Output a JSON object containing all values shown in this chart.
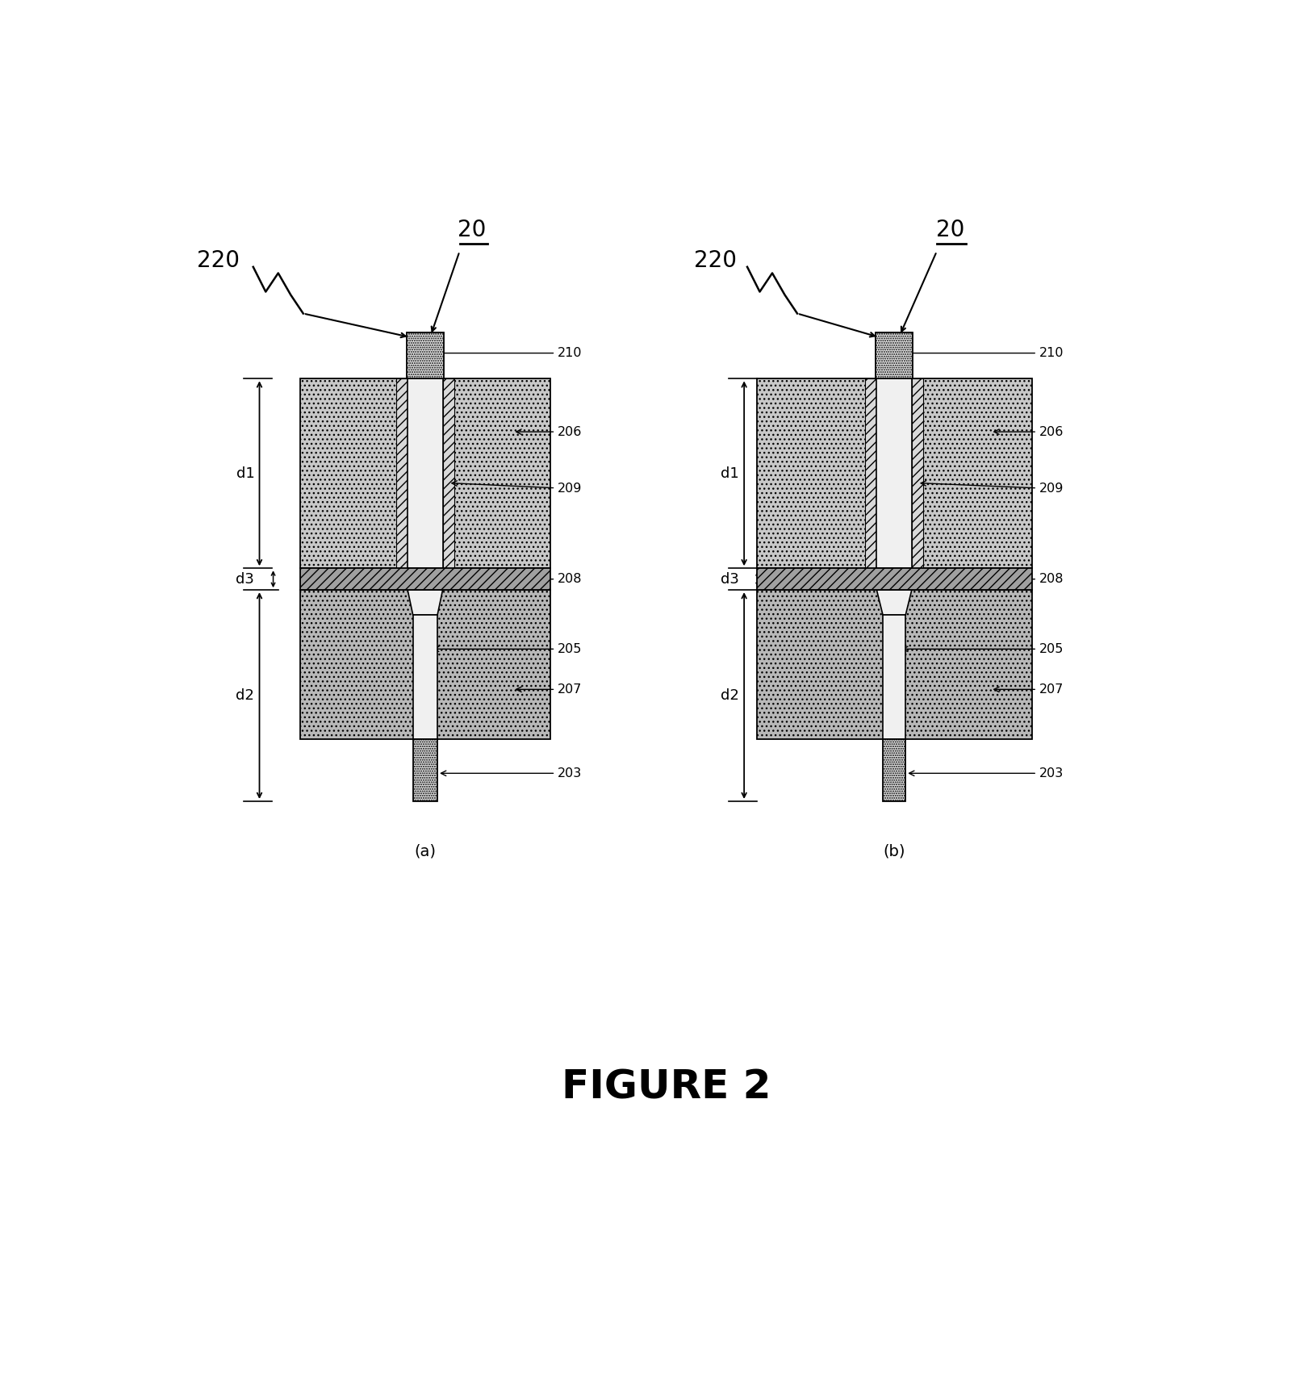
{
  "title": "FIGURE 2",
  "fig_width": 16.11,
  "fig_height": 17.04,
  "bg_color": "#ffffff",
  "label_a": "(a)",
  "label_b": "(b)"
}
